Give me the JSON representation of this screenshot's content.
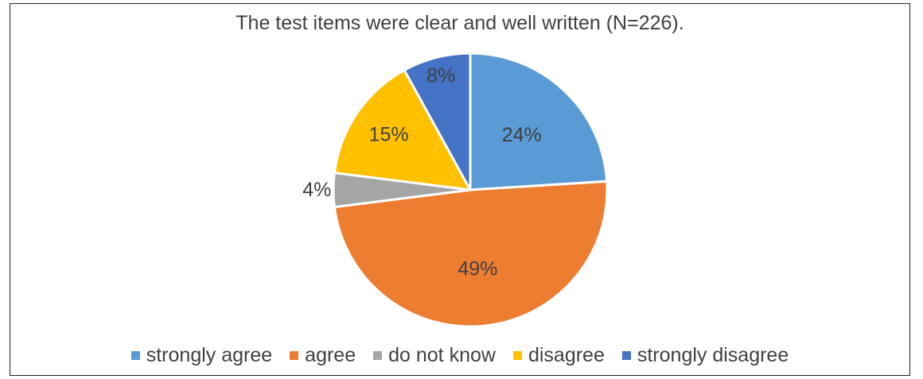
{
  "chart_data": {
    "type": "pie",
    "title": "The test items were clear and well written (N=226).",
    "categories": [
      "strongly agree",
      "agree",
      "do not know",
      "disagree",
      "strongly disagree"
    ],
    "values": [
      24,
      49,
      4,
      15,
      8
    ],
    "labels": [
      "24%",
      "49%",
      "4%",
      "15%",
      "8%"
    ],
    "colors": [
      "#5b9bd5",
      "#ed7d31",
      "#a5a5a5",
      "#ffc000",
      "#4472c4"
    ],
    "legend_position": "bottom",
    "start_angle_deg": 0,
    "direction": "clockwise"
  }
}
